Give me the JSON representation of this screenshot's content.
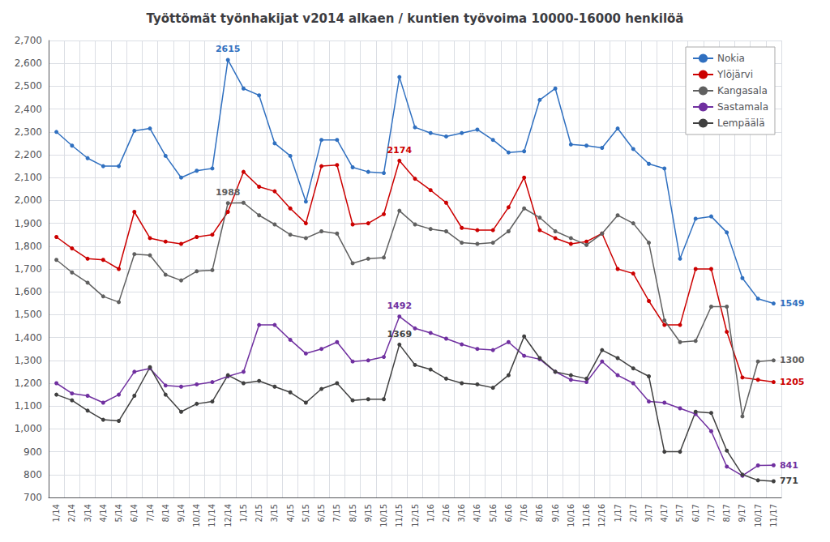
{
  "chart_data": {
    "type": "line",
    "title": "Työttömät työnhakijat v2014 alkaen / kuntien työvoima 10000-16000 henkilöä",
    "categories": [
      "1/14",
      "2/14",
      "3/14",
      "4/14",
      "5/14",
      "6/14",
      "7/14",
      "8/14",
      "9/14",
      "10/14",
      "11/14",
      "12/14",
      "1/15",
      "2/15",
      "3/15",
      "4/15",
      "5/15",
      "6/15",
      "7/15",
      "8/15",
      "9/15",
      "10/15",
      "11/15",
      "12/15",
      "1/16",
      "2/16",
      "3/16",
      "4/16",
      "5/16",
      "6/16",
      "7/16",
      "8/16",
      "9/16",
      "10/16",
      "11/16",
      "12/16",
      "1/17",
      "2/17",
      "3/17",
      "4/17",
      "5/17",
      "6/17",
      "7/17",
      "8/17",
      "9/17",
      "10/17",
      "11/17"
    ],
    "series": [
      {
        "name": "Nokia",
        "color": "#3070C0",
        "values": [
          2300,
          2240,
          2185,
          2150,
          2150,
          2305,
          2315,
          2195,
          2100,
          2130,
          2140,
          2615,
          2490,
          2460,
          2250,
          2195,
          1995,
          2265,
          2265,
          2145,
          2125,
          2120,
          2540,
          2320,
          2295,
          2280,
          2295,
          2310,
          2265,
          2210,
          2215,
          2440,
          2490,
          2245,
          2240,
          2230,
          2315,
          2225,
          2160,
          2140,
          1745,
          1920,
          1930,
          1860,
          1660,
          1570,
          1549
        ]
      },
      {
        "name": "Ylöjärvi",
        "color": "#CC0000",
        "values": [
          1840,
          1790,
          1745,
          1740,
          1700,
          1950,
          1835,
          1820,
          1810,
          1840,
          1850,
          1950,
          2125,
          2060,
          2040,
          1965,
          1900,
          2150,
          2155,
          1895,
          1900,
          1940,
          2174,
          2095,
          2045,
          1990,
          1880,
          1870,
          1870,
          1970,
          2100,
          1870,
          1835,
          1810,
          1820,
          1855,
          1700,
          1680,
          1560,
          1455,
          1455,
          1700,
          1700,
          1425,
          1225,
          1215,
          1205
        ]
      },
      {
        "name": "Kangasala",
        "color": "#606060",
        "values": [
          1740,
          1685,
          1640,
          1580,
          1555,
          1765,
          1760,
          1675,
          1650,
          1690,
          1695,
          1988,
          1990,
          1935,
          1895,
          1850,
          1835,
          1865,
          1855,
          1725,
          1745,
          1750,
          1955,
          1895,
          1875,
          1865,
          1815,
          1810,
          1815,
          1865,
          1965,
          1925,
          1865,
          1835,
          1805,
          1855,
          1935,
          1900,
          1815,
          1475,
          1380,
          1385,
          1535,
          1535,
          1055,
          1295,
          1300
        ]
      },
      {
        "name": "Sastamala",
        "color": "#7030A0",
        "values": [
          1200,
          1155,
          1145,
          1115,
          1150,
          1250,
          1265,
          1190,
          1185,
          1195,
          1205,
          1230,
          1250,
          1455,
          1455,
          1390,
          1330,
          1350,
          1380,
          1295,
          1300,
          1315,
          1492,
          1440,
          1420,
          1395,
          1370,
          1350,
          1345,
          1380,
          1320,
          1305,
          1250,
          1215,
          1205,
          1295,
          1235,
          1200,
          1120,
          1115,
          1090,
          1065,
          990,
          835,
          795,
          840,
          841
        ]
      },
      {
        "name": "Lempäälä",
        "color": "#404040",
        "values": [
          1150,
          1125,
          1080,
          1040,
          1035,
          1145,
          1270,
          1150,
          1075,
          1110,
          1120,
          1235,
          1200,
          1210,
          1185,
          1160,
          1115,
          1175,
          1200,
          1125,
          1130,
          1130,
          1369,
          1280,
          1260,
          1220,
          1200,
          1195,
          1180,
          1235,
          1405,
          1310,
          1250,
          1235,
          1220,
          1345,
          1310,
          1265,
          1230,
          900,
          900,
          1075,
          1070,
          905,
          800,
          775,
          771
        ]
      }
    ],
    "annotations": [
      {
        "text": "2615",
        "series": "Nokia",
        "x": "12/14",
        "y": 2615
      },
      {
        "text": "1988",
        "series": "Kangasala",
        "x": "12/14",
        "y": 1988
      },
      {
        "text": "2174",
        "series": "Ylöjärvi",
        "x": "11/15",
        "y": 2174
      },
      {
        "text": "1492",
        "series": "Sastamala",
        "x": "11/15",
        "y": 1492
      },
      {
        "text": "1369",
        "series": "Lempäälä",
        "x": "11/15",
        "y": 1369
      },
      {
        "text": "1549",
        "series": "Nokia",
        "x": "11/17",
        "y": 1549
      },
      {
        "text": "1205",
        "series": "Ylöjärvi",
        "x": "11/17",
        "y": 1205
      },
      {
        "text": "1300",
        "series": "Kangasala",
        "x": "11/17",
        "y": 1300
      },
      {
        "text": "841",
        "series": "Sastamala",
        "x": "11/17",
        "y": 841
      },
      {
        "text": "771",
        "series": "Lempäälä",
        "x": "11/17",
        "y": 771
      }
    ],
    "ylim": [
      700,
      2700
    ],
    "yticks": [
      700,
      800,
      900,
      1000,
      1100,
      1200,
      1300,
      1400,
      1500,
      1600,
      1700,
      1800,
      1900,
      2000,
      2100,
      2200,
      2300,
      2400,
      2500,
      2600,
      2700
    ],
    "grid": true,
    "legend": "upper right",
    "marker": "circle"
  }
}
